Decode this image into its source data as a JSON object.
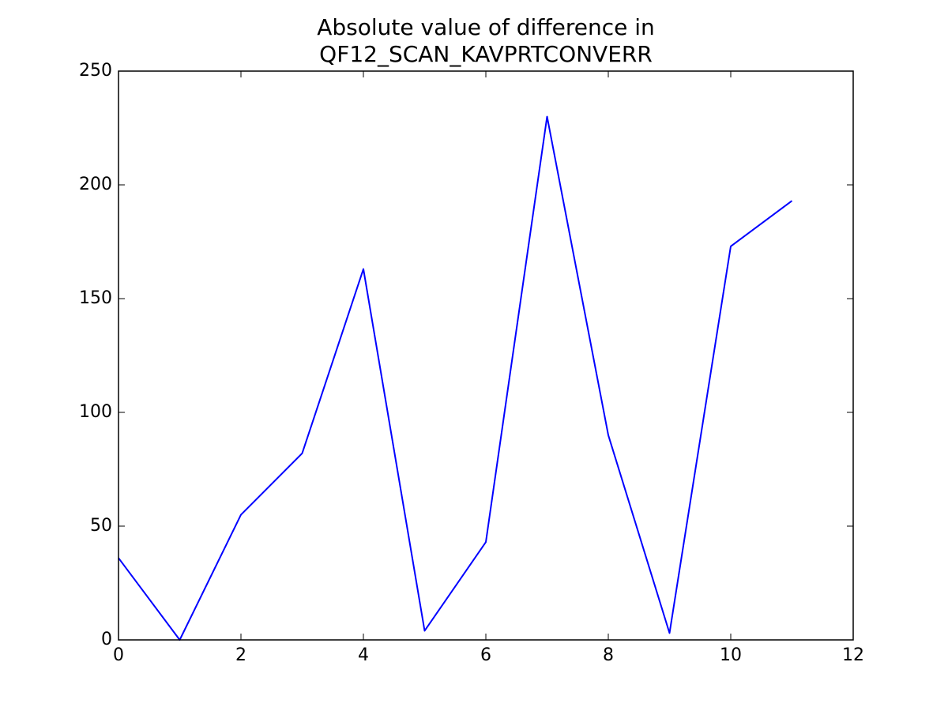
{
  "chart_data": {
    "type": "line",
    "title": [
      "Absolute value of difference in",
      "QF12_SCAN_KAVPRTCONVERR"
    ],
    "x": [
      0,
      1,
      2,
      3,
      4,
      5,
      6,
      7,
      8,
      9,
      10,
      11
    ],
    "series": [
      {
        "color": "#0000ff",
        "values": [
          36,
          0,
          55,
          82,
          163,
          4,
          43,
          230,
          90,
          3,
          173,
          193
        ]
      }
    ],
    "xlim": [
      0,
      12
    ],
    "xticks": [
      0,
      2,
      4,
      6,
      8,
      10,
      12
    ],
    "ylim": [
      0,
      250
    ],
    "yticks": [
      0,
      50,
      100,
      150,
      200,
      250
    ],
    "grid": false
  }
}
